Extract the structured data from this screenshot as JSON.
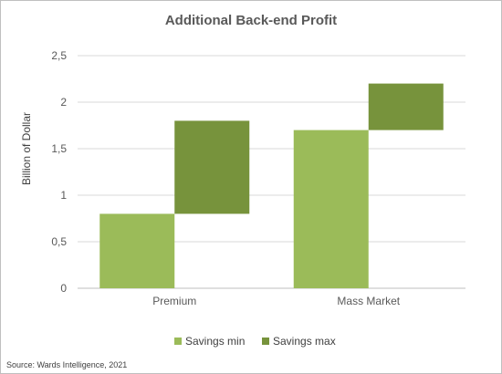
{
  "chart_data": {
    "type": "bar",
    "title": "Additional Back-end Profit",
    "ylabel": "Billion of Dollar",
    "xlabel": "",
    "ylim": [
      0,
      2.5
    ],
    "yticks": [
      "0",
      "0,5",
      "1",
      "1,5",
      "2",
      "2,5"
    ],
    "grid": true,
    "categories": [
      "Premium",
      "Mass Market"
    ],
    "series": [
      {
        "name": "Savings min",
        "color": "#9bbb59",
        "bars": [
          {
            "start": 0,
            "end": 0.8
          },
          {
            "start": 0,
            "end": 1.7
          }
        ]
      },
      {
        "name": "Savings max",
        "color": "#77933c",
        "bars": [
          {
            "start": 0.8,
            "end": 1.8
          },
          {
            "start": 1.7,
            "end": 2.2
          }
        ]
      }
    ],
    "legend_position": "bottom",
    "source": "Source: Wards Intelligence, 2021"
  }
}
